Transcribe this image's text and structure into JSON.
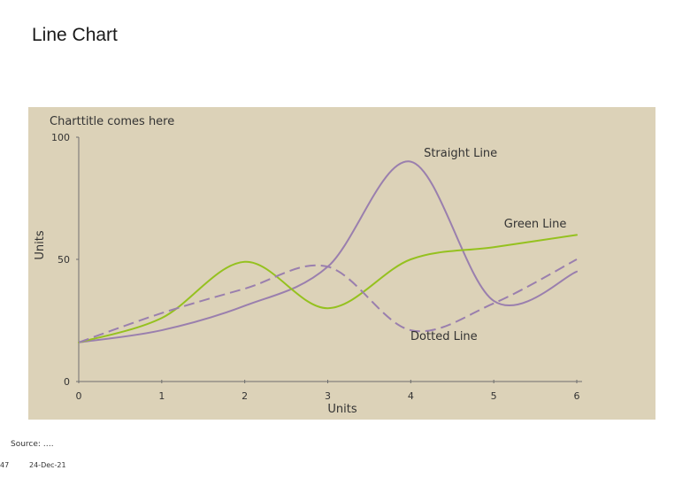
{
  "page": {
    "title": "Line Chart",
    "source": "Source: ….",
    "slide_number": "47",
    "date": "24-Dec-21"
  },
  "colors": {
    "panel_bg": "#dcd2b8",
    "purple": "#9a7fae",
    "green": "#95c11f",
    "dashed": "#9a7fae",
    "axis": "#6f6f6f",
    "text": "#333333"
  },
  "chart_data": {
    "type": "line",
    "title": "Charttitle comes here",
    "xlabel": "Units",
    "ylabel": "Units",
    "xlim": [
      0,
      6
    ],
    "ylim": [
      0,
      100
    ],
    "x_ticks": [
      0,
      1,
      2,
      3,
      4,
      5,
      6
    ],
    "y_ticks": [
      0,
      50,
      100
    ],
    "grid": false,
    "legend": "none",
    "series": [
      {
        "name": "Straight Line",
        "style": "solid",
        "color": "#9a7fae",
        "points": [
          [
            0,
            16
          ],
          [
            1,
            21
          ],
          [
            2,
            31
          ],
          [
            3,
            47
          ],
          [
            4,
            90
          ],
          [
            5,
            33
          ],
          [
            6,
            45
          ]
        ]
      },
      {
        "name": "Green Line",
        "style": "solid",
        "color": "#95c11f",
        "points": [
          [
            0,
            16
          ],
          [
            1,
            26
          ],
          [
            2,
            49
          ],
          [
            3,
            30
          ],
          [
            4,
            50
          ],
          [
            5,
            55
          ],
          [
            6,
            60
          ]
        ]
      },
      {
        "name": "Dotted Line",
        "style": "dashed",
        "color": "#9a7fae",
        "points": [
          [
            0,
            16
          ],
          [
            1,
            28
          ],
          [
            2,
            38
          ],
          [
            3,
            47
          ],
          [
            4,
            21
          ],
          [
            5,
            32
          ],
          [
            6,
            50
          ]
        ]
      }
    ],
    "annotations": [
      {
        "text": "Straight Line",
        "series": 0,
        "anchor": [
          4.6,
          92
        ]
      },
      {
        "text": "Green Line",
        "series": 1,
        "anchor": [
          5.5,
          63
        ]
      },
      {
        "text": "Dotted Line",
        "series": 2,
        "anchor": [
          4.4,
          17
        ]
      }
    ]
  }
}
